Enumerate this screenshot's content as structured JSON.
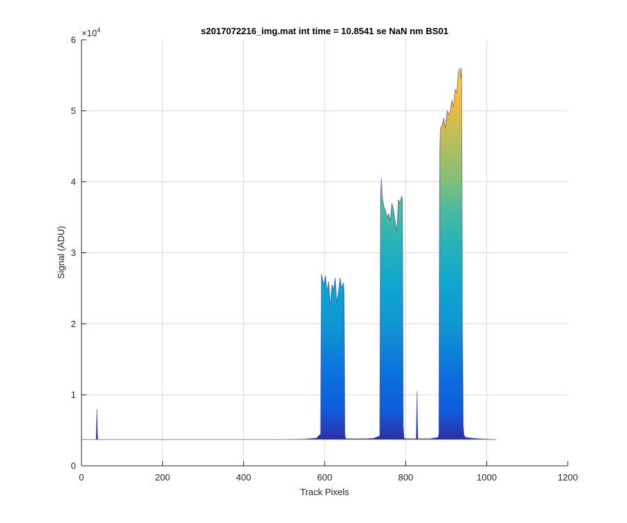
{
  "chart_data": {
    "type": "area",
    "title": "s2017072216_img.mat int time = 10.8541 se  NaN nm BS01",
    "xlabel": "Track Pixels",
    "ylabel": "Signal (ADU)",
    "xlim": [
      0,
      1200
    ],
    "ylim": [
      0,
      60000
    ],
    "xticks": [
      0,
      200,
      400,
      600,
      800,
      1000,
      1200
    ],
    "yticks": [
      0,
      1,
      2,
      3,
      4,
      5,
      6
    ],
    "y_exponent_label": "×10",
    "y_exponent_power": "4",
    "grid": true,
    "colormap": "parula",
    "colors": {
      "low": "#352a87",
      "mid_low": "#0f5cdd",
      "mid": "#0da6ce",
      "mid_high": "#6fbf76",
      "high": "#f4bc3a",
      "peak": "#f9fb0e",
      "grid": "#dedede",
      "axis": "#262626"
    },
    "series": [
      {
        "x": [
          1,
          36,
          37,
          38,
          39,
          40,
          60,
          100,
          150,
          200,
          250,
          300,
          350,
          400,
          450,
          500,
          550,
          580,
          590,
          592,
          594,
          598,
          602,
          606,
          610,
          614,
          618,
          622,
          626,
          630,
          634,
          638,
          642,
          646,
          648,
          650,
          652,
          656,
          660,
          680,
          700,
          720,
          736,
          738,
          740,
          742,
          746,
          750,
          754,
          758,
          762,
          766,
          770,
          774,
          778,
          782,
          786,
          790,
          792,
          794,
          796,
          800,
          810,
          826,
          827,
          828,
          829,
          830,
          831,
          840,
          860,
          880,
          882,
          884,
          886,
          890,
          894,
          898,
          902,
          906,
          910,
          914,
          918,
          922,
          926,
          930,
          934,
          936,
          938,
          940,
          942,
          944,
          948,
          960,
          980,
          1000,
          1024
        ],
        "y": [
          3700,
          3700,
          6000,
          8000,
          5000,
          3700,
          3700,
          3700,
          3700,
          3700,
          3700,
          3700,
          3700,
          3700,
          3700,
          3700,
          3750,
          3900,
          4500,
          27000,
          26500,
          25500,
          26800,
          24500,
          26000,
          22500,
          25500,
          24800,
          26500,
          23000,
          24500,
          26500,
          25000,
          25800,
          24500,
          4500,
          3800,
          3800,
          3800,
          3800,
          3800,
          3850,
          4200,
          38000,
          40500,
          38000,
          36500,
          36000,
          35000,
          35500,
          34500,
          37000,
          36000,
          34500,
          33000,
          37500,
          37000,
          38000,
          37500,
          5500,
          3900,
          3800,
          3800,
          3800,
          7000,
          10500,
          6500,
          3800,
          3800,
          3800,
          3800,
          4000,
          4500,
          44000,
          47500,
          48000,
          49000,
          47500,
          50000,
          49500,
          50000,
          51500,
          50500,
          53000,
          52500,
          55500,
          56000,
          54500,
          56000,
          20000,
          5500,
          4300,
          4000,
          3900,
          3800,
          3750,
          3700
        ]
      }
    ]
  }
}
